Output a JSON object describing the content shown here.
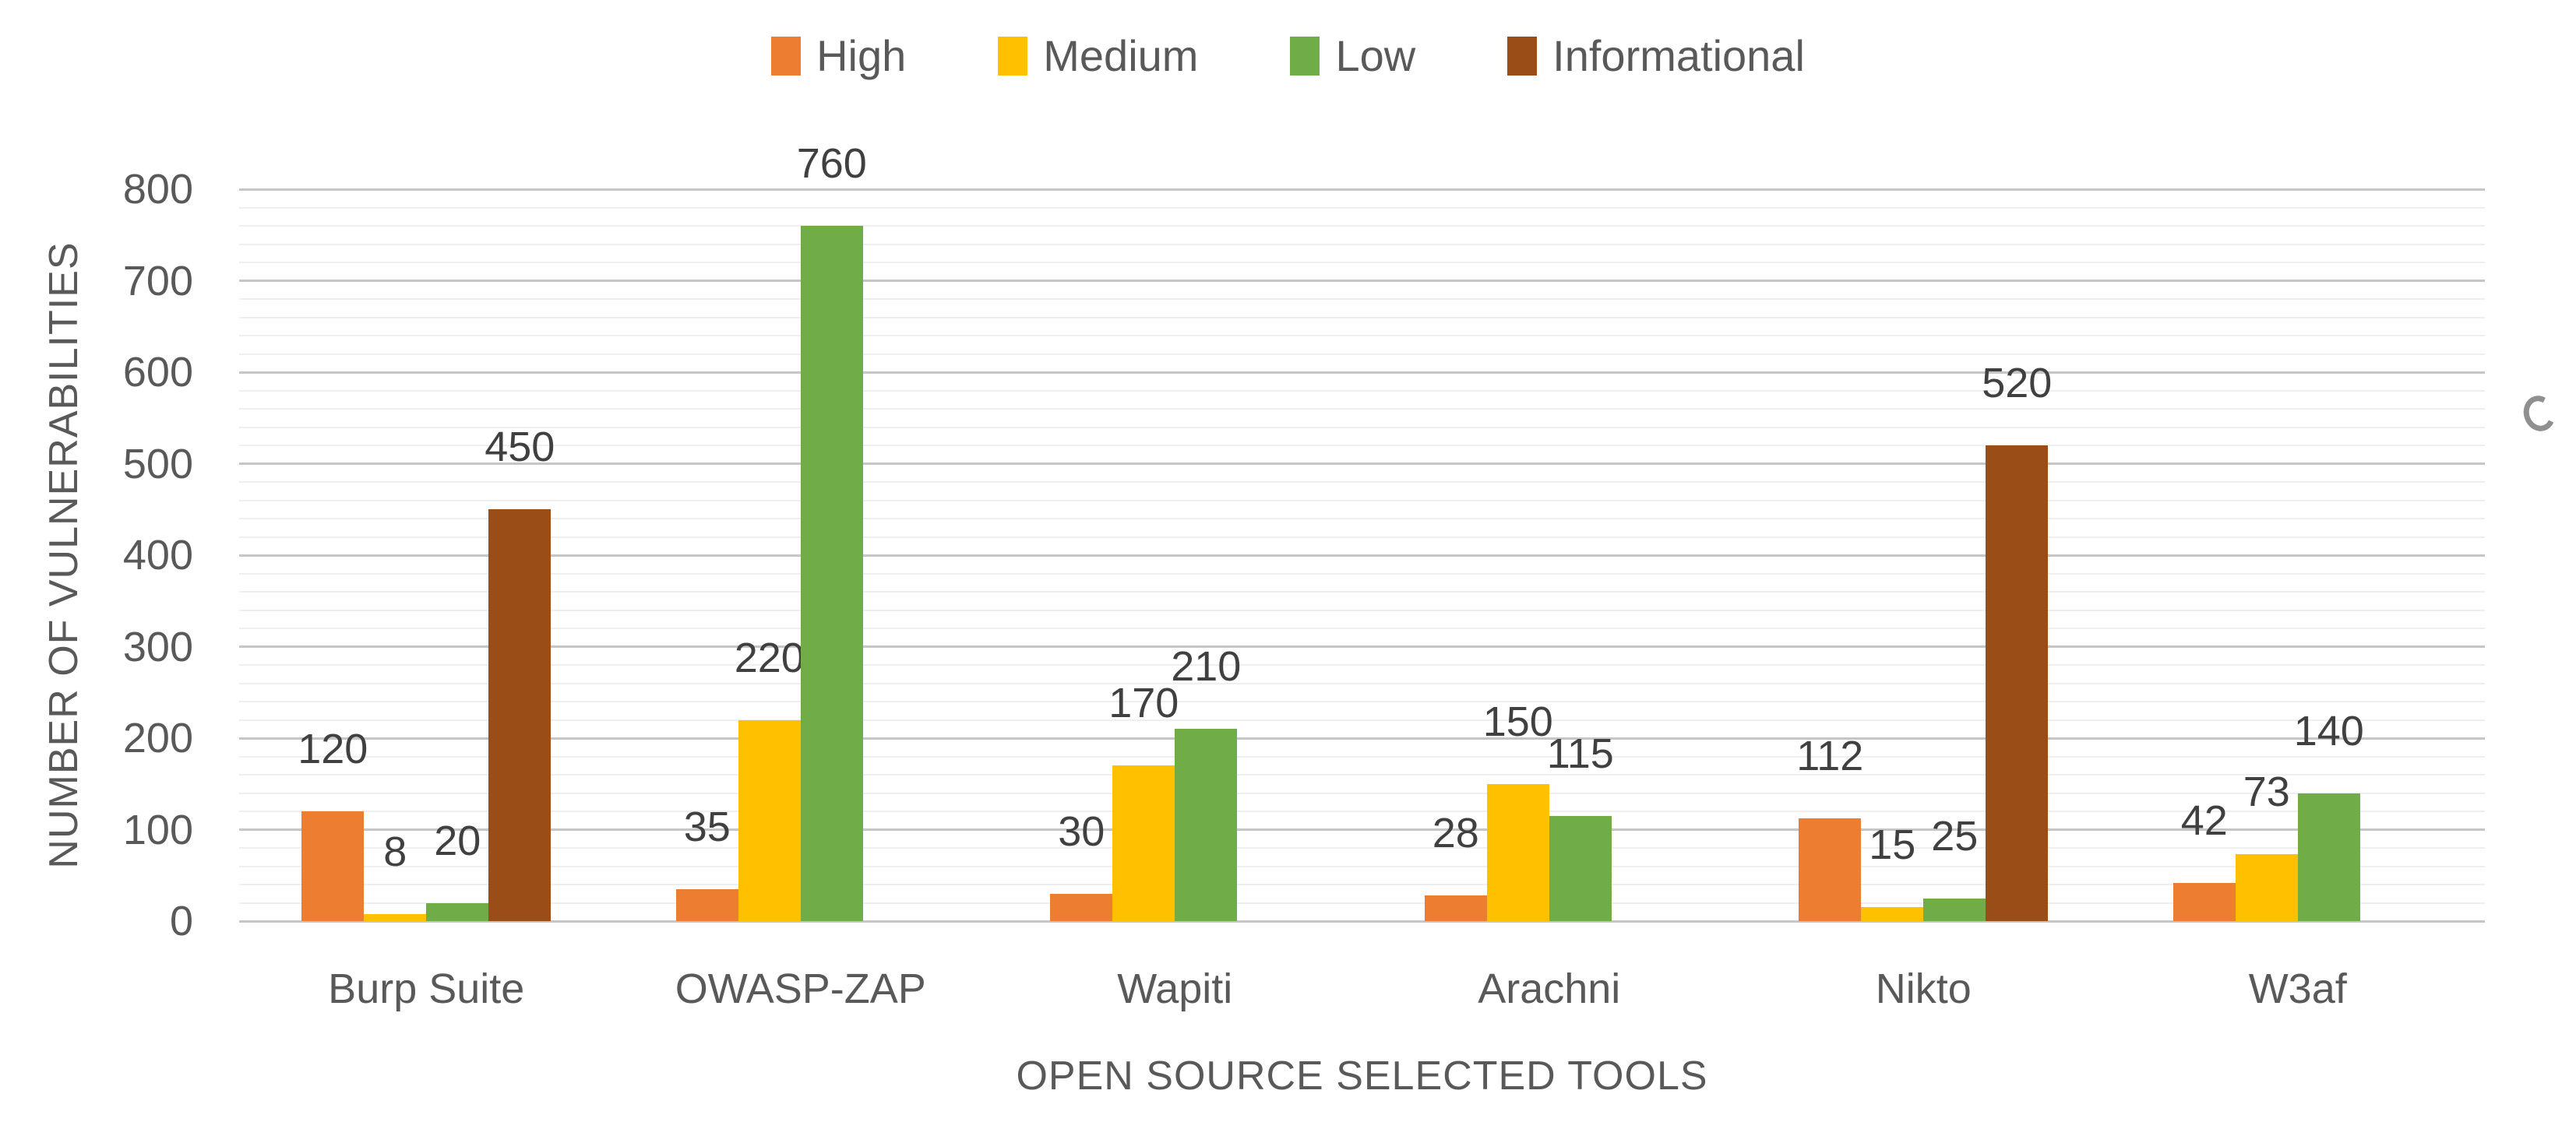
{
  "chart_data": {
    "type": "bar",
    "title": "",
    "categories": [
      "Burp Suite",
      "OWASP-ZAP",
      "Wapiti",
      "Arachni",
      "Nikto",
      "W3af"
    ],
    "series": [
      {
        "name": "High",
        "color": "#ED7D31",
        "values": [
          120,
          35,
          30,
          28,
          112,
          42
        ]
      },
      {
        "name": "Medium",
        "color": "#FFC000",
        "values": [
          8,
          220,
          170,
          150,
          15,
          73
        ]
      },
      {
        "name": "Low",
        "color": "#70AD47",
        "values": [
          20,
          760,
          210,
          115,
          25,
          140
        ]
      },
      {
        "name": "Informational",
        "color": "#9A4D16",
        "values": [
          450,
          null,
          null,
          null,
          520,
          null
        ]
      }
    ],
    "xlabel": "OPEN SOURCE SELECTED TOOLS",
    "ylabel": "NUMBER OF VULNERABILITIES",
    "ylim": [
      0,
      800
    ],
    "yticks": [
      0,
      100,
      200,
      300,
      400,
      500,
      600,
      700,
      800
    ],
    "major_gridline_interval": 100,
    "minor_gridline_interval": 20,
    "grid": true,
    "legend_position": "top",
    "data_labels": "outside-end"
  },
  "colors": {
    "background": "#FFFFFF",
    "grid_major": "#C6C6C6",
    "grid_minor": "#EFEFEF",
    "axis_text": "#595959",
    "data_label_text": "#404040",
    "legend_text": "#595959",
    "artifact_mark": "#8F8F8F"
  }
}
